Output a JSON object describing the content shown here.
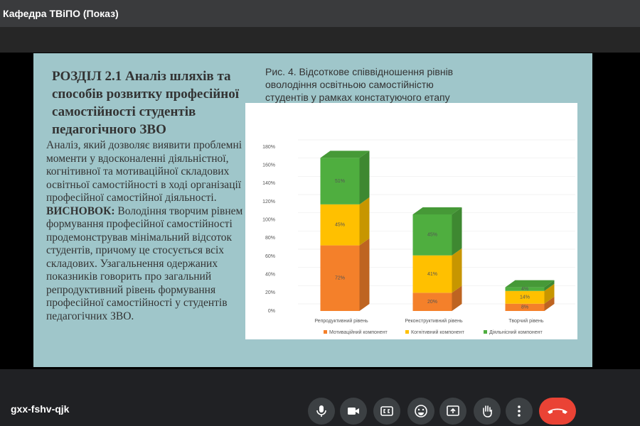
{
  "header": {
    "title": "Кафедра ТВіПО (Показ)"
  },
  "slide": {
    "heading": "РОЗДІЛ 2.1 Аналіз шляхів та способів розвитку професійної самостійності студентів педагогічного ЗВО",
    "intro": "Аналіз, який дозволяє виявити проблемні моменти у вдосконаленні діяльністної, когнітивної та мотиваційної складових освітньої самостійності в ході організації професійної самостійної діяльності.",
    "conclusion_label": "ВИСНОВОК:",
    "conclusion": "Володіння творчим рівнем формування професійної самостійності продемонстрував мінімальний відсоток студентів, причому це стосується всіх складових. Узагальнення одержаних показників говорить про загальний репродуктивний рівень формування професійної самостійності у студентів педагогічних ЗВО.",
    "caption": "Рис. 4. Відсоткове співвідношення рівнів оволодіння освітньою самостійністю студентів у рамках констатуючого етапу"
  },
  "chart_data": {
    "type": "stacked-bar-3d",
    "categories": [
      "Репродуктивний рівень",
      "Реконструктивний рівень",
      "Творчий рівень"
    ],
    "series": [
      {
        "name": "Мотиваційний компонент",
        "color": "#f4802a",
        "values": [
          72,
          20,
          8
        ],
        "value_labels": [
          "72%",
          "20%",
          "8%"
        ]
      },
      {
        "name": "Когнітивний компонент",
        "color": "#ffc000",
        "values": [
          45,
          41,
          14
        ],
        "value_labels": [
          "45%",
          "41%",
          "14%"
        ]
      },
      {
        "name": "Діяльнісний компонент",
        "color": "#4fae3f",
        "values": [
          51,
          45,
          4
        ],
        "value_labels": [
          "51%",
          "45%",
          "4%"
        ]
      }
    ],
    "ylim": [
      0,
      180
    ],
    "yticks": [
      {
        "value": 0,
        "label": "0%"
      },
      {
        "value": 20,
        "label": "20%"
      },
      {
        "value": 40,
        "label": "40%"
      },
      {
        "value": 60,
        "label": "60%"
      },
      {
        "value": 80,
        "label": "80%"
      },
      {
        "value": 100,
        "label": "100%"
      },
      {
        "value": 120,
        "label": "120%"
      },
      {
        "value": 140,
        "label": "140%"
      },
      {
        "value": 160,
        "label": "160%"
      },
      {
        "value": 180,
        "label": "180%"
      }
    ],
    "grid": true,
    "legend": "bottom"
  },
  "meeting": {
    "code": "gxx-fshv-qjk"
  }
}
